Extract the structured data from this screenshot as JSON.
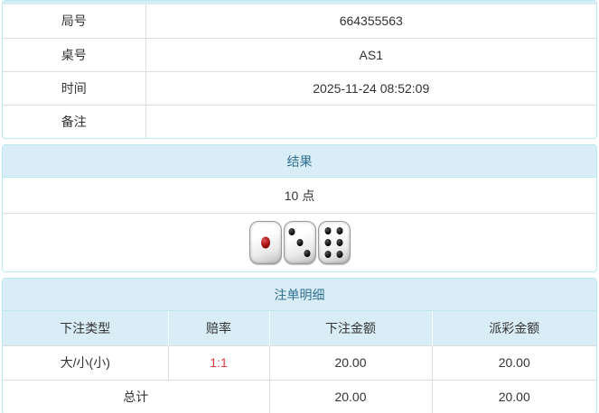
{
  "colors": {
    "panel_border": "#bce8f1",
    "heading_bg": "#d9edf7",
    "heading_text": "#31708f",
    "row_divider": "#dddddd",
    "odds_red": "#e4393c",
    "body_text": "#333333"
  },
  "info_table": {
    "rows": [
      {
        "label": "局号",
        "value": "664355563"
      },
      {
        "label": "桌号",
        "value": "AS1"
      },
      {
        "label": "时间",
        "value": "2025-11-24 08:52:09"
      },
      {
        "label": "备注",
        "value": ""
      }
    ]
  },
  "result_panel": {
    "title": "结果",
    "points": "10 点",
    "dice": [
      {
        "value": 1,
        "color": "red"
      },
      {
        "value": 3,
        "color": "black"
      },
      {
        "value": 6,
        "color": "black"
      }
    ]
  },
  "bets_panel": {
    "title": "注单明细",
    "columns": [
      "下注类型",
      "赔率",
      "下注金额",
      "派彩金额"
    ],
    "rows": [
      {
        "type": "大/小(小)",
        "odds": "1:1",
        "bet": "20.00",
        "payout": "20.00"
      }
    ],
    "total": {
      "label": "总计",
      "bet": "20.00",
      "payout": "20.00"
    }
  }
}
